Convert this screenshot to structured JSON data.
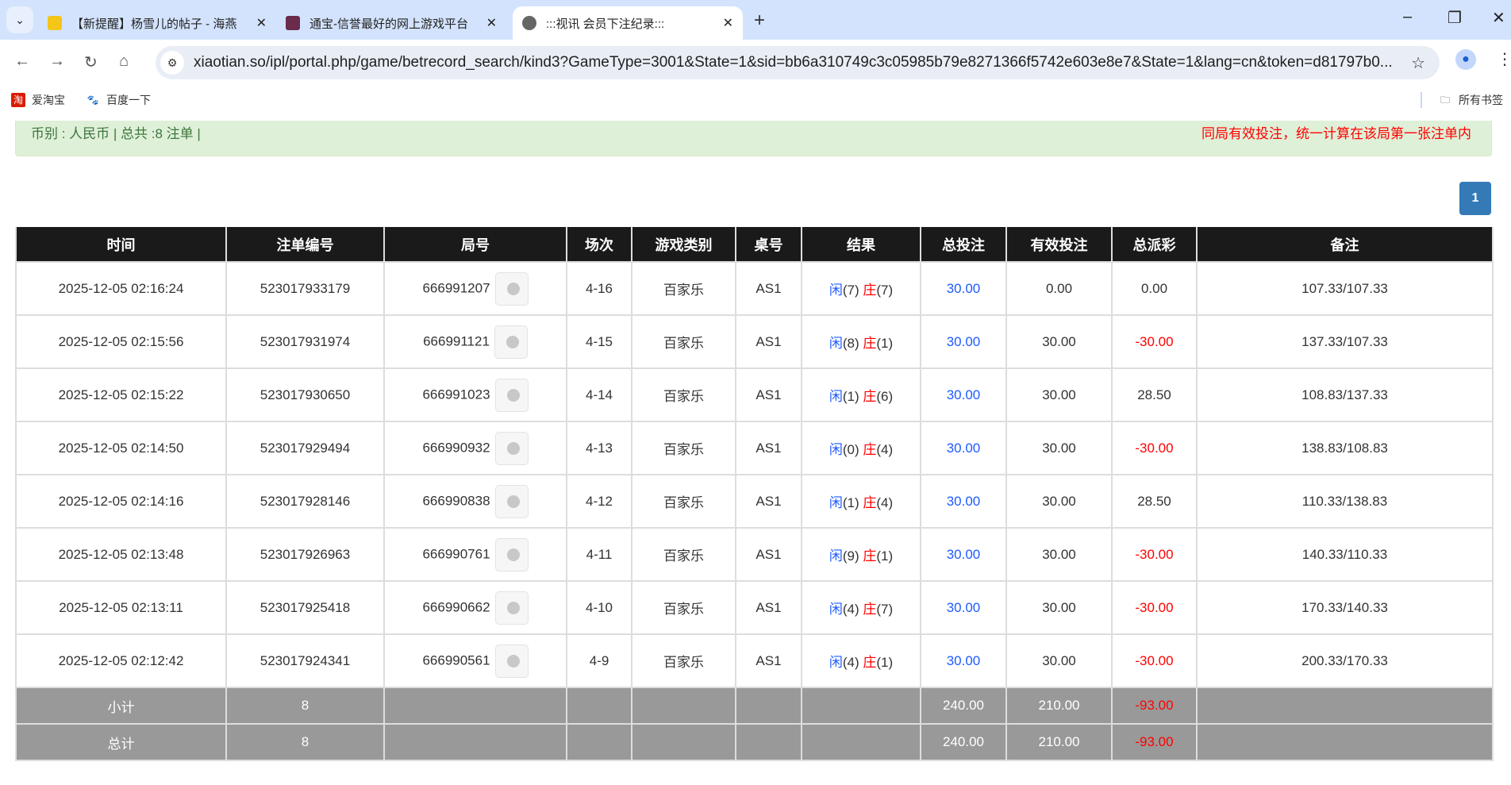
{
  "browser": {
    "tabs": [
      {
        "title": "【新提醒】杨雪儿的帖子 - 海燕",
        "icon": "yellow-tag-icon",
        "active": false
      },
      {
        "title": "通宝-信誉最好的网上游戏平台",
        "icon": "casino-chip-icon",
        "active": false
      },
      {
        "title": ":::视讯 会员下注纪录:::",
        "icon": "globe-icon",
        "active": true
      }
    ],
    "url": "xiaotian.so/ipl/portal.php/game/betrecord_search/kind3?GameType=3001&State=1&sid=bb6a310749c3c05985b79e8271366f5742e603e8e7&State=1&lang=cn&token=d81797b0...",
    "bookmarks": [
      "爱淘宝",
      "百度一下"
    ],
    "all_bookmarks": "所有书签"
  },
  "info": {
    "left": "币别 : 人民币 | 总共 :8 注单 |",
    "right": "同局有效投注，统一计算在该局第一张注单内"
  },
  "pagination": {
    "current": "1"
  },
  "table": {
    "headers": [
      "时间",
      "注单编号",
      "局号",
      "场次",
      "游戏类别",
      "桌号",
      "结果",
      "总投注",
      "有效投注",
      "总派彩",
      "备注"
    ],
    "result_labels": {
      "player": "闲",
      "banker": "庄"
    },
    "rows": [
      {
        "time": "2025-12-05 02:16:24",
        "bet_id": "523017933179",
        "round": "666991207",
        "shoe": "4-16",
        "game": "百家乐",
        "table": "AS1",
        "player": "(7)",
        "banker": "(7)",
        "total": "30.00",
        "valid": "0.00",
        "payout": "0.00",
        "note": "107.33/107.33"
      },
      {
        "time": "2025-12-05 02:15:56",
        "bet_id": "523017931974",
        "round": "666991121",
        "shoe": "4-15",
        "game": "百家乐",
        "table": "AS1",
        "player": "(8)",
        "banker": "(1)",
        "total": "30.00",
        "valid": "30.00",
        "payout": "-30.00",
        "note": "137.33/107.33"
      },
      {
        "time": "2025-12-05 02:15:22",
        "bet_id": "523017930650",
        "round": "666991023",
        "shoe": "4-14",
        "game": "百家乐",
        "table": "AS1",
        "player": "(1)",
        "banker": "(6)",
        "total": "30.00",
        "valid": "30.00",
        "payout": "28.50",
        "note": "108.83/137.33"
      },
      {
        "time": "2025-12-05 02:14:50",
        "bet_id": "523017929494",
        "round": "666990932",
        "shoe": "4-13",
        "game": "百家乐",
        "table": "AS1",
        "player": "(0)",
        "banker": "(4)",
        "total": "30.00",
        "valid": "30.00",
        "payout": "-30.00",
        "note": "138.83/108.83"
      },
      {
        "time": "2025-12-05 02:14:16",
        "bet_id": "523017928146",
        "round": "666990838",
        "shoe": "4-12",
        "game": "百家乐",
        "table": "AS1",
        "player": "(1)",
        "banker": "(4)",
        "total": "30.00",
        "valid": "30.00",
        "payout": "28.50",
        "note": "110.33/138.83"
      },
      {
        "time": "2025-12-05 02:13:48",
        "bet_id": "523017926963",
        "round": "666990761",
        "shoe": "4-11",
        "game": "百家乐",
        "table": "AS1",
        "player": "(9)",
        "banker": "(1)",
        "total": "30.00",
        "valid": "30.00",
        "payout": "-30.00",
        "note": "140.33/110.33"
      },
      {
        "time": "2025-12-05 02:13:11",
        "bet_id": "523017925418",
        "round": "666990662",
        "shoe": "4-10",
        "game": "百家乐",
        "table": "AS1",
        "player": "(4)",
        "banker": "(7)",
        "total": "30.00",
        "valid": "30.00",
        "payout": "-30.00",
        "note": "170.33/140.33"
      },
      {
        "time": "2025-12-05 02:12:42",
        "bet_id": "523017924341",
        "round": "666990561",
        "shoe": "4-9",
        "game": "百家乐",
        "table": "AS1",
        "player": "(4)",
        "banker": "(1)",
        "total": "30.00",
        "valid": "30.00",
        "payout": "-30.00",
        "note": "200.33/170.33"
      }
    ],
    "subtotal": {
      "label": "小计",
      "count": "8",
      "total": "240.00",
      "valid": "210.00",
      "payout": "-93.00"
    },
    "grandtotal": {
      "label": "总计",
      "count": "8",
      "total": "240.00",
      "valid": "210.00",
      "payout": "-93.00"
    }
  },
  "colors": {
    "header_bg": "#1a1a1a",
    "info_bg": "#dff0d8",
    "player": "#1e5bff",
    "banker": "#ff0000",
    "sum_bg": "#999999"
  }
}
